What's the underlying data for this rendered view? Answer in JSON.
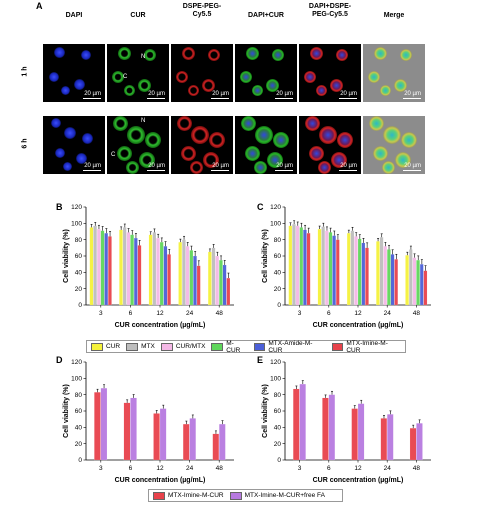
{
  "panels": {
    "A": "A",
    "B": "B",
    "C": "C",
    "D": "D",
    "E": "E"
  },
  "micro": {
    "columns": [
      "DAPI",
      "CUR",
      "DSPE-PEG-\nCy5.5",
      "DAPI+CUR",
      "DAPI+DSPE-\nPEG-Cy5.5",
      "Merge"
    ],
    "rows": [
      "1 h",
      "6 h"
    ],
    "scale_label": "20 µm",
    "pointers": {
      "N": "N",
      "C": "C"
    }
  },
  "colors": {
    "CUR": "#f5f23a",
    "MTX": "#bdbdbd",
    "CUR/MTX": "#f4b8e6",
    "M-CUR": "#5fd65b",
    "MTX-Amide-M-CUR": "#4b5fd8",
    "MTX-Imine-M-CUR": "#e8424b",
    "MTX-Imine-M-CUR+free FA": "#b77ae0"
  },
  "legend_top": [
    "CUR",
    "MTX",
    "CUR/MTX",
    "M-CUR",
    "MTX-Amide-M-CUR",
    "MTX-Imine-M-CUR"
  ],
  "legend_bottom": [
    "MTX-Imine-M-CUR",
    "MTX-Imine-M-CUR+free FA"
  ],
  "chart_data": [
    {
      "panel": "B",
      "type": "bar",
      "categories": [
        "3",
        "6",
        "12",
        "24",
        "48"
      ],
      "xlabel": "CUR concentration (µg/mL)",
      "ylabel": "Cell viability (%)",
      "ylim": [
        0,
        120
      ],
      "yticks": [
        0,
        20,
        40,
        60,
        80,
        100,
        120
      ],
      "series": [
        {
          "name": "CUR",
          "values": [
            95,
            92,
            86,
            77,
            65
          ]
        },
        {
          "name": "MTX",
          "values": [
            97,
            95,
            89,
            80,
            70
          ]
        },
        {
          "name": "CUR/MTX",
          "values": [
            93,
            89,
            82,
            72,
            60
          ]
        },
        {
          "name": "M-CUR",
          "values": [
            91,
            86,
            77,
            67,
            55
          ]
        },
        {
          "name": "MTX-Amide-M-CUR",
          "values": [
            88,
            82,
            72,
            60,
            49
          ]
        },
        {
          "name": "MTX-Imine-M-CUR",
          "values": [
            84,
            73,
            62,
            48,
            33
          ]
        }
      ]
    },
    {
      "panel": "C",
      "type": "bar",
      "categories": [
        "3",
        "6",
        "12",
        "24",
        "48"
      ],
      "xlabel": "CUR concentration (µg/mL)",
      "ylabel": "Cell viability (%)",
      "ylim": [
        0,
        120
      ],
      "yticks": [
        0,
        20,
        40,
        60,
        80,
        100,
        120
      ],
      "series": [
        {
          "name": "CUR",
          "values": [
            97,
            93,
            88,
            78,
            61
          ]
        },
        {
          "name": "MTX",
          "values": [
            99,
            96,
            91,
            83,
            68
          ]
        },
        {
          "name": "CUR/MTX",
          "values": [
            97,
            91,
            84,
            72,
            58
          ]
        },
        {
          "name": "M-CUR",
          "values": [
            95,
            89,
            81,
            68,
            55
          ]
        },
        {
          "name": "MTX-Amide-M-CUR",
          "values": [
            92,
            85,
            76,
            62,
            50
          ]
        },
        {
          "name": "MTX-Imine-M-CUR",
          "values": [
            88,
            80,
            70,
            56,
            42
          ]
        }
      ]
    },
    {
      "panel": "D",
      "type": "bar",
      "categories": [
        "3",
        "6",
        "12",
        "24",
        "48"
      ],
      "xlabel": "CUR concentration (µg/mL)",
      "ylabel": "Cell viability (%)",
      "ylim": [
        0,
        120
      ],
      "yticks": [
        0,
        20,
        40,
        60,
        80,
        100,
        120
      ],
      "series": [
        {
          "name": "MTX-Imine-M-CUR",
          "values": [
            83,
            70,
            57,
            44,
            32
          ]
        },
        {
          "name": "MTX-Imine-M-CUR+free FA",
          "values": [
            88,
            76,
            63,
            51,
            44
          ]
        }
      ]
    },
    {
      "panel": "E",
      "type": "bar",
      "categories": [
        "3",
        "6",
        "12",
        "24",
        "48"
      ],
      "xlabel": "CUR concentration (µg/mL)",
      "ylabel": "Cell viability (%)",
      "ylim": [
        0,
        120
      ],
      "yticks": [
        0,
        20,
        40,
        60,
        80,
        100,
        120
      ],
      "series": [
        {
          "name": "MTX-Imine-M-CUR",
          "values": [
            87,
            76,
            63,
            51,
            39
          ]
        },
        {
          "name": "MTX-Imine-M-CUR+free FA",
          "values": [
            93,
            80,
            69,
            56,
            45
          ]
        }
      ]
    }
  ]
}
